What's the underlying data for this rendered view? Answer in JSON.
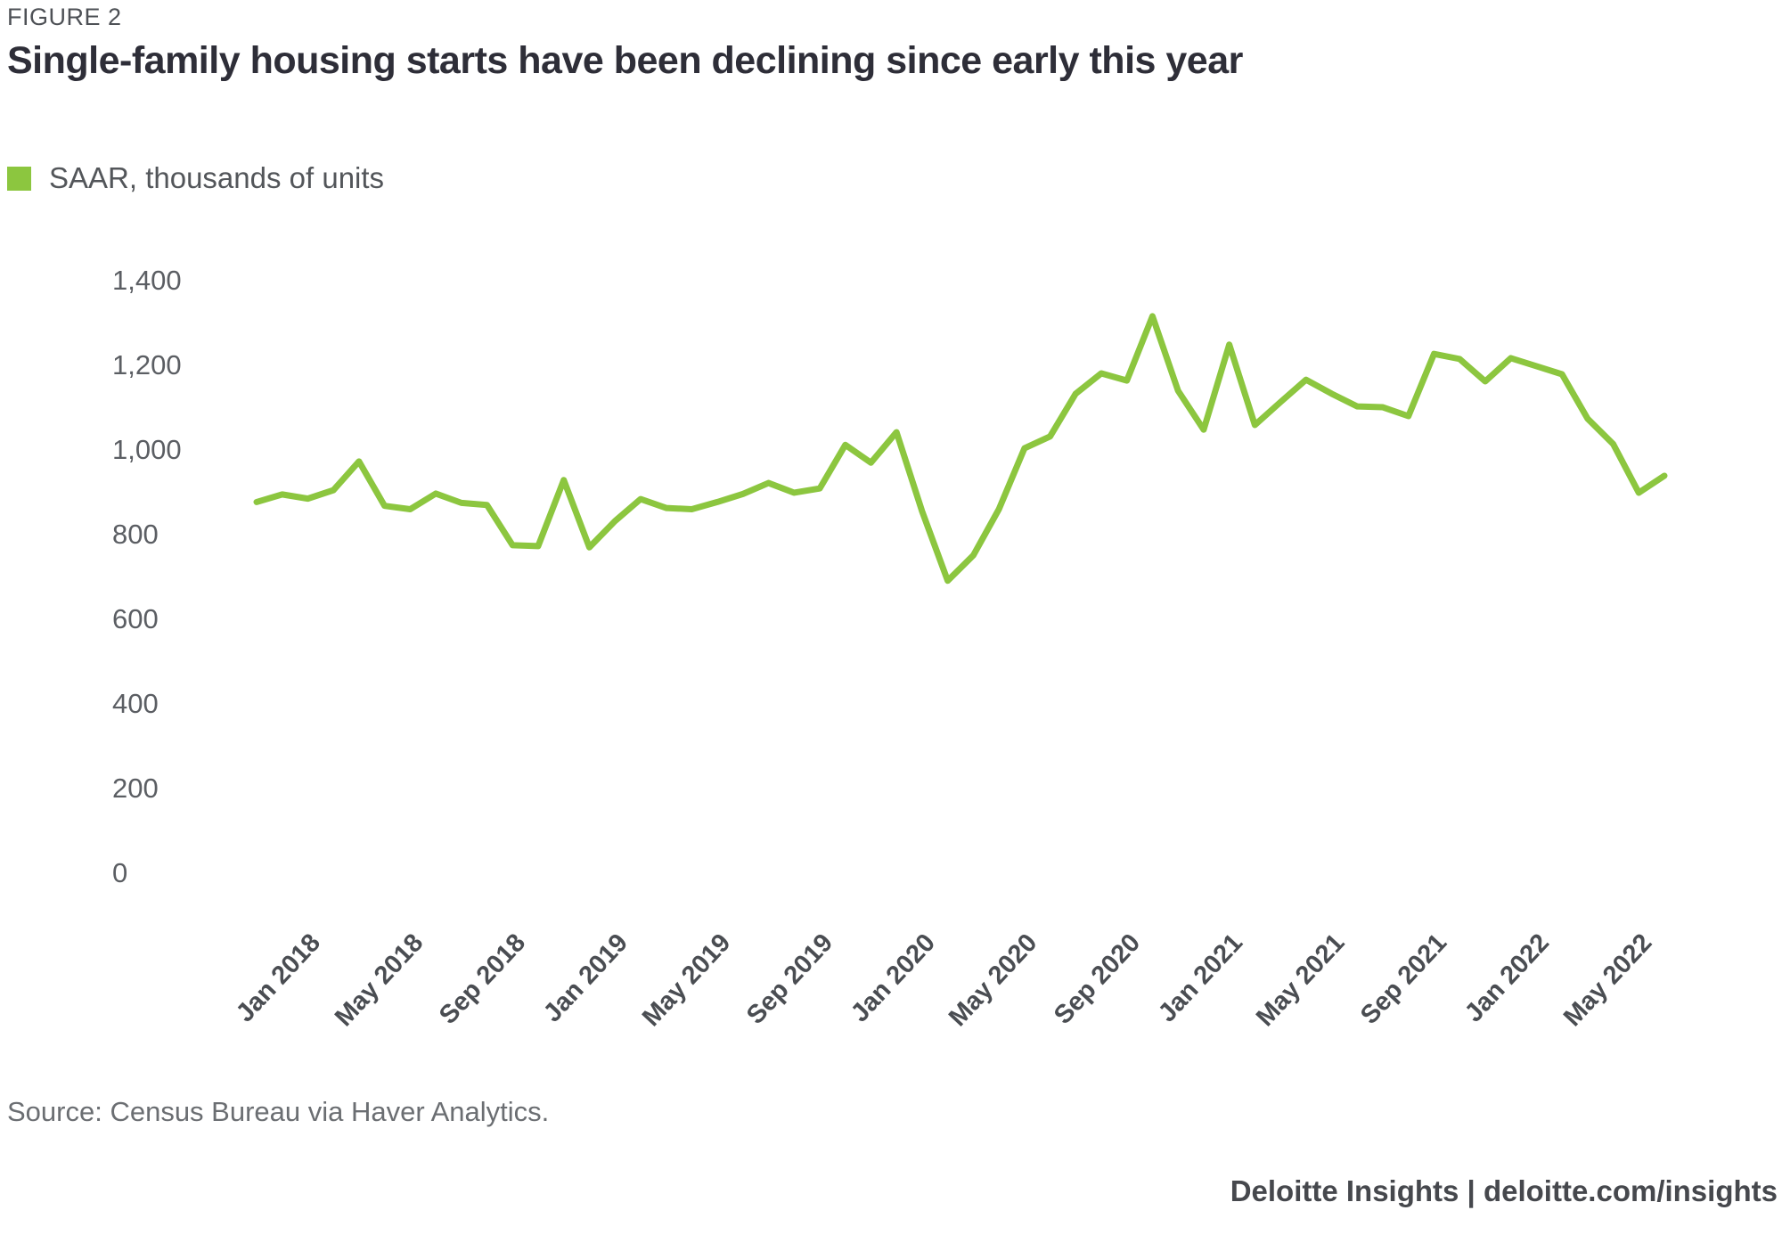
{
  "figure_label": "FIGURE 2",
  "title": "Single-family housing starts have been declining since early this year",
  "legend": {
    "label": "SAAR, thousands of units",
    "swatch_color": "#8CC63F"
  },
  "source": "Source: Census Bureau via Haver Analytics.",
  "footer": "Deloitte Insights | deloitte.com/insights",
  "colors": {
    "line": "#8CC63F",
    "title_text": "#2E2E38",
    "figure_label_text": "#4E5156",
    "legend_text": "#53565A",
    "y_axis_text": "#5B5E63",
    "x_axis_text": "#4A4D52",
    "background": "#FFFFFF"
  },
  "chart_data": {
    "type": "line",
    "title": "Single-family housing starts have been declining since early this year",
    "series_name": "SAAR, thousands of units",
    "x": [
      "Jan 2018",
      "Feb 2018",
      "Mar 2018",
      "Apr 2018",
      "May 2018",
      "Jun 2018",
      "Jul 2018",
      "Aug 2018",
      "Sep 2018",
      "Oct 2018",
      "Nov 2018",
      "Dec 2018",
      "Jan 2019",
      "Feb 2019",
      "Mar 2019",
      "Apr 2019",
      "May 2019",
      "Jun 2019",
      "Jul 2019",
      "Aug 2019",
      "Sep 2019",
      "Oct 2019",
      "Nov 2019",
      "Dec 2019",
      "Jan 2020",
      "Feb 2020",
      "Mar 2020",
      "Apr 2020",
      "May 2020",
      "Jun 2020",
      "Jul 2020",
      "Aug 2020",
      "Sep 2020",
      "Oct 2020",
      "Nov 2020",
      "Dec 2020",
      "Jan 2021",
      "Feb 2021",
      "Mar 2021",
      "Apr 2021",
      "May 2021",
      "Jun 2021",
      "Jul 2021",
      "Aug 2021",
      "Sep 2021",
      "Oct 2021",
      "Nov 2021",
      "Dec 2021",
      "Jan 2022",
      "Feb 2022",
      "Mar 2022",
      "Apr 2022",
      "May 2022",
      "Jun 2022",
      "Jul 2022",
      "Aug 2022"
    ],
    "values": [
      877,
      895,
      885,
      905,
      973,
      868,
      860,
      897,
      875,
      870,
      775,
      773,
      929,
      770,
      832,
      884,
      863,
      860,
      877,
      896,
      922,
      899,
      909,
      1012,
      970,
      1042,
      855,
      691,
      751,
      860,
      1004,
      1032,
      1133,
      1181,
      1164,
      1316,
      1140,
      1048,
      1249,
      1059,
      1113,
      1166,
      1133,
      1103,
      1101,
      1080,
      1227,
      1215,
      1162,
      1217,
      1198,
      1179,
      1074,
      1014,
      899,
      939
    ],
    "x_tick_labels": [
      "Jan 2018",
      "May 2018",
      "Sep 2018",
      "Jan 2019",
      "May 2019",
      "Sep 2019",
      "Jan 2020",
      "May 2020",
      "Sep 2020",
      "Jan 2021",
      "May 2021",
      "Sep 2021",
      "Jan 2022",
      "May 2022"
    ],
    "x_tick_every": 4,
    "y_tick_labels": [
      "0",
      "200",
      "400",
      "600",
      "800",
      "1,000",
      "1,200",
      "1,400"
    ],
    "y_tick_values": [
      0,
      200,
      400,
      600,
      800,
      1000,
      1200,
      1400
    ],
    "ylim": [
      0,
      1400
    ],
    "grid": false,
    "axis_lines": false,
    "legend_position": "top-left",
    "line_color": "#8CC63F"
  }
}
